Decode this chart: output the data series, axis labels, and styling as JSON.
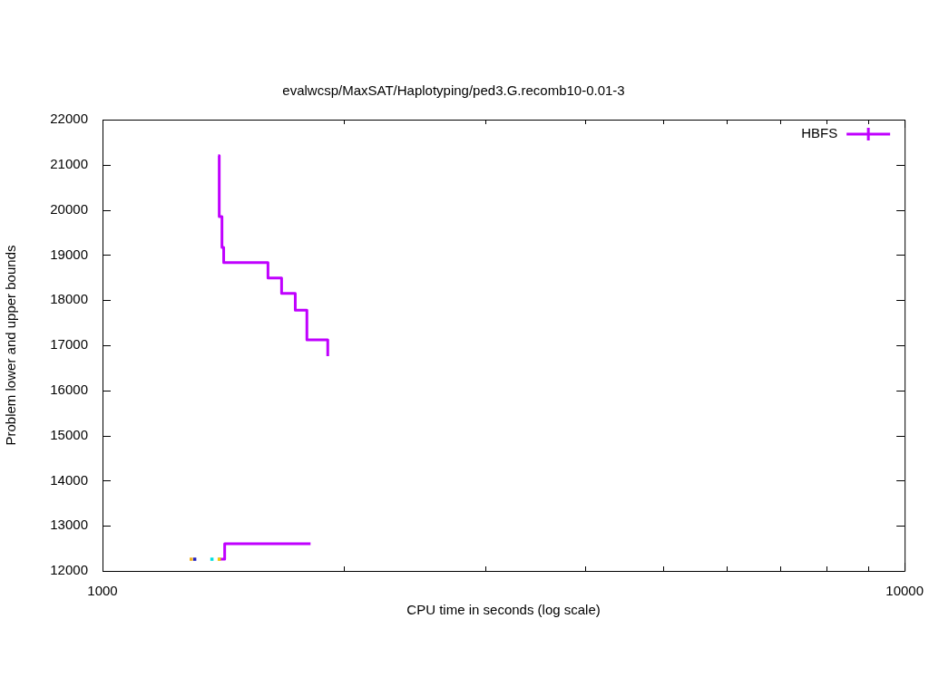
{
  "chart_data": {
    "type": "step",
    "title": "evalwcsp/MaxSAT/Haplotyping/ped3.G.recomb10-0.01-3",
    "xlabel": "CPU time in seconds (log scale)",
    "ylabel": "Problem lower and upper bounds",
    "log": "x",
    "xlim": [
      1000,
      10000
    ],
    "xticks": [
      1000,
      {
        "value": 2000,
        "label": null
      },
      {
        "value": 3000,
        "label": null
      },
      {
        "value": 4000,
        "label": null
      },
      {
        "value": 5000,
        "label": null
      },
      {
        "value": 6000,
        "label": null
      },
      {
        "value": 7000,
        "label": null
      },
      {
        "value": 8000,
        "label": null
      },
      {
        "value": 9000,
        "label": null
      },
      10000
    ],
    "ylim": [
      12000,
      22000
    ],
    "yticks": [
      12000,
      13000,
      14000,
      15000,
      16000,
      17000,
      18000,
      19000,
      20000,
      21000,
      22000
    ],
    "grid": false,
    "legend": "top right",
    "marker": "none",
    "line_style": "solid",
    "series": [
      {
        "name": "HBFS",
        "color": "#c000ff",
        "x": [
          1394,
          1398,
          1409,
          1416,
          1608,
          1672,
          1739,
          1798,
          1909
        ],
        "values": [
          21200,
          19850,
          19170,
          18830,
          18490,
          18150,
          17780,
          17120,
          16760
        ]
      },
      {
        "color": "#c000ff",
        "x": [
          1394,
          1420,
          1817
        ],
        "values": [
          12260,
          12600,
          12600
        ]
      },
      {
        "type": "scatter",
        "color": "#f0b020",
        "x": [
          1290
        ],
        "values": [
          12260
        ],
        "marker": "square"
      },
      {
        "type": "scatter",
        "color": "#2020c0",
        "x": [
          1303
        ],
        "values": [
          12260
        ],
        "marker": "square"
      },
      {
        "type": "scatter",
        "color": "#00e0e0",
        "x": [
          1369
        ],
        "values": [
          12260
        ],
        "marker": "square"
      },
      {
        "type": "scatter",
        "color": "#f0d000",
        "x": [
          1398
        ],
        "values": [
          12260
        ],
        "marker": "square"
      }
    ]
  }
}
